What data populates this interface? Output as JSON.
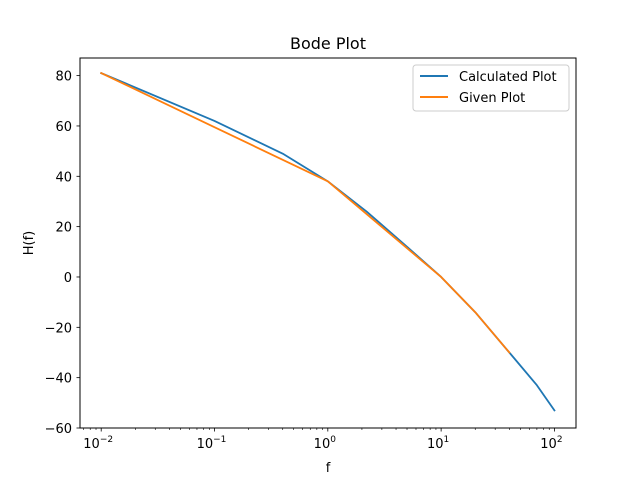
{
  "chart_data": {
    "type": "line",
    "title": "Bode Plot",
    "xlabel": "f",
    "ylabel": "H(f)",
    "xscale": "log",
    "xlim": [
      0.0065,
      155
    ],
    "ylim": [
      -60,
      87
    ],
    "x_ticks": [
      {
        "value": 0.01,
        "base": "10",
        "exp": "−2"
      },
      {
        "value": 0.1,
        "base": "10",
        "exp": "−1"
      },
      {
        "value": 1,
        "base": "10",
        "exp": "0"
      },
      {
        "value": 10,
        "base": "10",
        "exp": "1"
      },
      {
        "value": 100,
        "base": "10",
        "exp": "2"
      }
    ],
    "y_ticks": [
      {
        "value": 80,
        "label": "80"
      },
      {
        "value": 60,
        "label": "60"
      },
      {
        "value": 40,
        "label": "40"
      },
      {
        "value": 20,
        "label": "20"
      },
      {
        "value": 0,
        "label": "0"
      },
      {
        "value": -20,
        "label": "−20"
      },
      {
        "value": -40,
        "label": "−40"
      },
      {
        "value": -60,
        "label": "−60"
      }
    ],
    "grid": false,
    "legend_position": "top-right",
    "series": [
      {
        "name": "Calculated Plot",
        "color": "#1f77b4",
        "points": [
          [
            0.01,
            81
          ],
          [
            0.1,
            62
          ],
          [
            0.4,
            49
          ],
          [
            1,
            38
          ],
          [
            2.2,
            26
          ],
          [
            5,
            12
          ],
          [
            10,
            0
          ],
          [
            20,
            -14
          ],
          [
            40,
            -30
          ],
          [
            70,
            -43
          ],
          [
            100,
            -53
          ]
        ]
      },
      {
        "name": "Given Plot",
        "color": "#ff7f0e",
        "points": [
          [
            0.01,
            81
          ],
          [
            1,
            38
          ],
          [
            10,
            0
          ],
          [
            20,
            -14
          ],
          [
            40,
            -30
          ]
        ]
      }
    ]
  }
}
